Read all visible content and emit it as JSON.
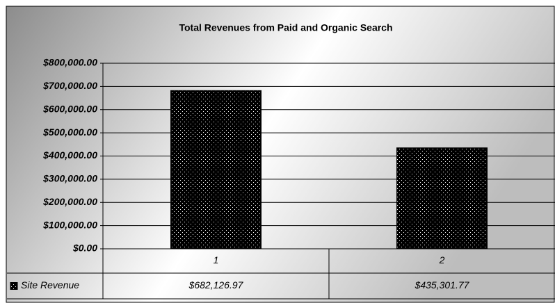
{
  "chart_data": {
    "type": "bar",
    "title": "Total Revenues from Paid and Organic Search",
    "categories": [
      "1",
      "2"
    ],
    "series": [
      {
        "name": "Site Revenue",
        "color": "#000000",
        "values": [
          682126.97,
          435301.77
        ],
        "value_labels": [
          "$682,126.97",
          "$435,301.77"
        ]
      }
    ],
    "ylim": [
      0,
      800000
    ],
    "yticks": [
      {
        "value": 0,
        "label": "$0.00"
      },
      {
        "value": 100000,
        "label": "$100,000.00"
      },
      {
        "value": 200000,
        "label": "$200,000.00"
      },
      {
        "value": 300000,
        "label": "$300,000.00"
      },
      {
        "value": 400000,
        "label": "$400,000.00"
      },
      {
        "value": 500000,
        "label": "$500,000.00"
      },
      {
        "value": 600000,
        "label": "$600,000.00"
      },
      {
        "value": 700000,
        "label": "$700,000.00"
      },
      {
        "value": 800000,
        "label": "$800,000.00"
      }
    ],
    "grid": true
  }
}
